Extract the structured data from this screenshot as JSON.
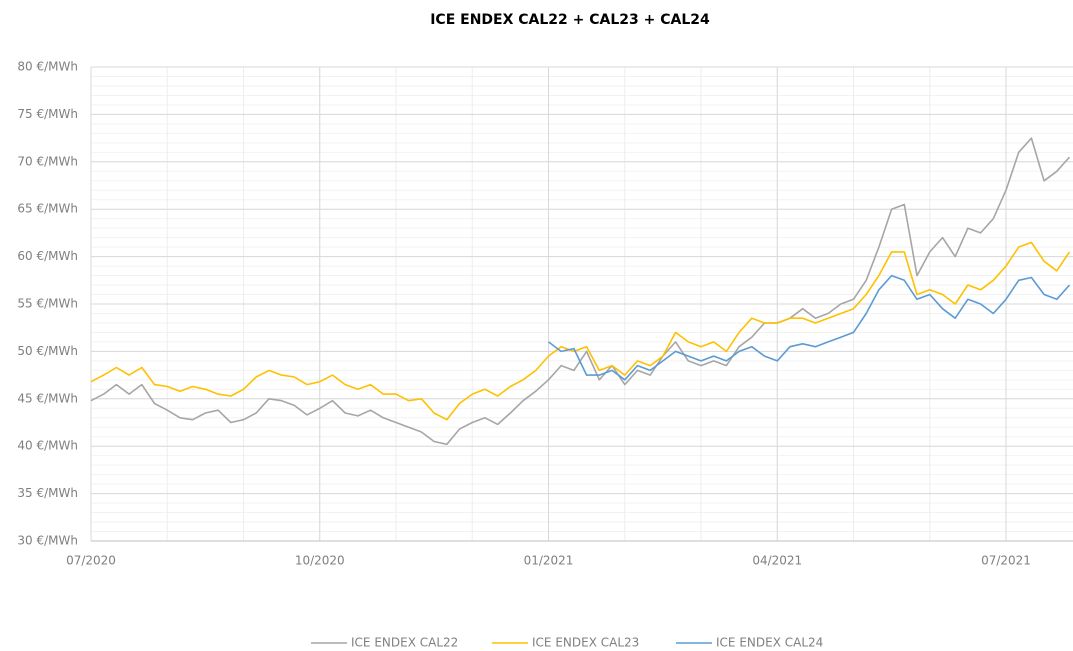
{
  "chart_data": {
    "type": "line",
    "title": "ICE ENDEX CAL22 + CAL23 + CAL24",
    "categories": [
      "07/2020",
      null,
      null,
      null,
      null,
      null,
      null,
      null,
      null,
      null,
      null,
      null,
      null,
      null,
      null,
      null,
      null,
      null,
      "10/2020",
      null,
      null,
      null,
      null,
      null,
      null,
      null,
      null,
      null,
      null,
      null,
      null,
      null,
      null,
      null,
      null,
      null,
      "01/2021",
      null,
      null,
      null,
      null,
      null,
      null,
      null,
      null,
      null,
      null,
      null,
      null,
      null,
      null,
      null,
      null,
      null,
      "04/2021",
      null,
      null,
      null,
      null,
      null,
      null,
      null,
      null,
      null,
      null,
      null,
      null,
      null,
      null,
      null,
      null,
      null,
      "07/2021",
      null,
      null,
      null,
      null,
      null
    ],
    "series": [
      {
        "name": "ICE ENDEX CAL22",
        "color": "#a6a6a6",
        "values": [
          44.8,
          45.5,
          46.5,
          45.5,
          46.5,
          44.5,
          43.8,
          43.0,
          42.8,
          43.5,
          43.8,
          42.5,
          42.8,
          43.5,
          45.0,
          44.8,
          44.3,
          43.3,
          44.0,
          44.8,
          43.5,
          43.2,
          43.8,
          43.0,
          42.5,
          42.0,
          41.5,
          40.5,
          40.2,
          41.8,
          42.5,
          43.0,
          42.3,
          43.5,
          44.8,
          45.8,
          47.0,
          48.5,
          48.0,
          50.0,
          47.0,
          48.5,
          46.5,
          48.0,
          47.5,
          49.5,
          51.0,
          49.0,
          48.5,
          49.0,
          48.5,
          50.5,
          51.5,
          53.0,
          53.0,
          53.5,
          54.5,
          53.5,
          54.0,
          55.0,
          55.5,
          57.5,
          61.0,
          65.0,
          65.5,
          58.0,
          60.5,
          62.0,
          60.0,
          63.0,
          62.5,
          64.0,
          67.0,
          71.0,
          72.5,
          68.0,
          69.0,
          70.5
        ]
      },
      {
        "name": "ICE ENDEX CAL23",
        "color": "#ffc000",
        "values": [
          46.8,
          47.5,
          48.3,
          47.5,
          48.3,
          46.5,
          46.3,
          45.8,
          46.3,
          46.0,
          45.5,
          45.3,
          46.0,
          47.3,
          48.0,
          47.5,
          47.3,
          46.5,
          46.8,
          47.5,
          46.5,
          46.0,
          46.5,
          45.5,
          45.5,
          44.8,
          45.0,
          43.5,
          42.8,
          44.5,
          45.5,
          46.0,
          45.3,
          46.3,
          47.0,
          48.0,
          49.5,
          50.5,
          50.0,
          50.5,
          48.0,
          48.5,
          47.5,
          49.0,
          48.5,
          49.5,
          52.0,
          51.0,
          50.5,
          51.0,
          50.0,
          52.0,
          53.5,
          53.0,
          53.0,
          53.5,
          53.5,
          53.0,
          53.5,
          54.0,
          54.5,
          56.0,
          58.0,
          60.5,
          60.5,
          56.0,
          56.5,
          56.0,
          55.0,
          57.0,
          56.5,
          57.5,
          59.0,
          61.0,
          61.5,
          59.5,
          58.5,
          60.5
        ]
      },
      {
        "name": "ICE ENDEX CAL24",
        "color": "#5b9bd5",
        "values": [
          null,
          null,
          null,
          null,
          null,
          null,
          null,
          null,
          null,
          null,
          null,
          null,
          null,
          null,
          null,
          null,
          null,
          null,
          null,
          null,
          null,
          null,
          null,
          null,
          null,
          null,
          null,
          null,
          null,
          null,
          null,
          null,
          null,
          null,
          null,
          null,
          51.0,
          50.0,
          50.3,
          47.5,
          47.5,
          48.0,
          47.0,
          48.5,
          48.0,
          49.0,
          50.0,
          49.5,
          49.0,
          49.5,
          49.0,
          50.0,
          50.5,
          49.5,
          49.0,
          50.5,
          50.8,
          50.5,
          51.0,
          51.5,
          52.0,
          54.0,
          56.5,
          58.0,
          57.5,
          55.5,
          56.0,
          54.5,
          53.5,
          55.5,
          55.0,
          54.0,
          55.5,
          57.5,
          57.8,
          56.0,
          55.5,
          57.0
        ]
      }
    ],
    "ylim": [
      30,
      80
    ],
    "yticks": [
      {
        "value": 30,
        "label": "30 €/MWh"
      },
      {
        "value": 35,
        "label": "35 €/MWh"
      },
      {
        "value": 40,
        "label": "40 €/MWh"
      },
      {
        "value": 45,
        "label": "45 €/MWh"
      },
      {
        "value": 50,
        "label": "50 €/MWh"
      },
      {
        "value": 55,
        "label": "55 €/MWh"
      },
      {
        "value": 60,
        "label": "60 €/MWh"
      },
      {
        "value": 65,
        "label": "65 €/MWh"
      },
      {
        "value": 70,
        "label": "70 €/MWh"
      },
      {
        "value": 75,
        "label": "75 €/MWh"
      },
      {
        "value": 80,
        "label": "80 €/MWh"
      }
    ],
    "grid": true
  }
}
